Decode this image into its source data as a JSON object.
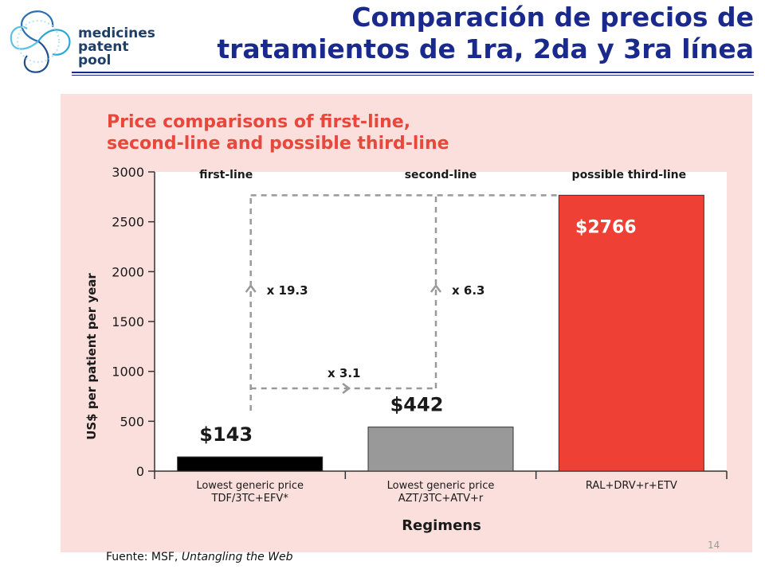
{
  "logo": {
    "lines": [
      "medicines",
      "patent",
      "pool"
    ]
  },
  "slide": {
    "title_line1": "Comparación de precios de",
    "title_line2": "tratamientos de 1ra, 2da y 3ra línea",
    "page_number": "14",
    "source_label": "Fuente: MSF,",
    "source_work": "Untangling the Web"
  },
  "colors": {
    "accent": "#e8473b",
    "title_blue": "#1a2a8c",
    "panel_bg": "#fbdfdc"
  },
  "chart_data": {
    "type": "bar",
    "title_lines": [
      "Price comparisons of first-line,",
      "second-line and possible third-line"
    ],
    "ylabel": "US$ per patient per year",
    "xlabel": "Regimens",
    "ylim": [
      0,
      3000
    ],
    "yticks": [
      0,
      500,
      1000,
      1500,
      2000,
      2500,
      3000
    ],
    "categories": [
      [
        "Lowest generic price",
        "TDF/3TC+EFV*"
      ],
      [
        "Lowest generic price",
        "AZT/3TC+ATV+r"
      ],
      [
        "RAL+DRV+r+ETV"
      ]
    ],
    "headers": [
      "first-line",
      "second-line",
      "possible third-line"
    ],
    "values": [
      143,
      442,
      2766
    ],
    "value_labels": [
      "$143",
      "$442",
      "$2766"
    ],
    "bar_colors": [
      "#000000",
      "#999999",
      "#ee4035"
    ],
    "annotations": [
      {
        "text": "x 19.3"
      },
      {
        "text": "x 6.3"
      },
      {
        "text": "x 3.1"
      }
    ]
  }
}
